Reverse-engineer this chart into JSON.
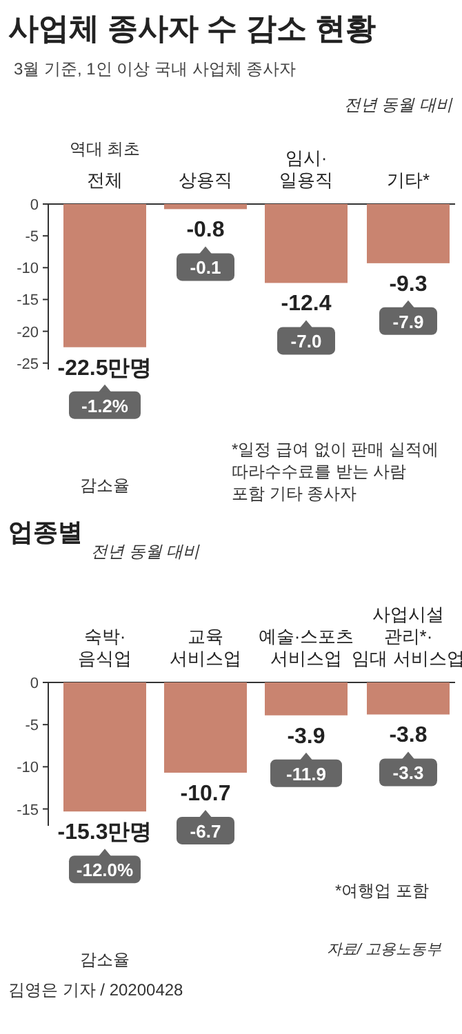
{
  "chart_data": [
    {
      "type": "bar",
      "title": "사업체 종사자 수 감소 현황",
      "subtitle": "3월 기준, 1인 이상 국내 사업체 종사자",
      "categories": [
        "전체",
        "상용직",
        "임시·\n일용직",
        "기타*"
      ],
      "values": [
        -22.5,
        -0.8,
        -12.4,
        -9.3
      ],
      "color": "#c98470",
      "value_labels": [
        "-22.5만명",
        "-0.8",
        "-12.4",
        "-9.3"
      ],
      "ylim": [
        -26,
        0
      ],
      "yticks": [
        0,
        -5,
        -10,
        -15,
        -20,
        -25
      ],
      "annotations": [
        "역대 최초",
        "전년 동월 대비",
        "감소율",
        "*일정 급여 없이 판매 실적에\n따라수수료를 받는 사람\n포함 기타 종사자",
        "-1.2%",
        "-0.1",
        "-7.0",
        "-7.9"
      ]
    },
    {
      "type": "bar",
      "title": "업종별",
      "categories": [
        "숙박·\n음식업",
        "교육\n서비스업",
        "예술·스포츠\n서비스업",
        "사업시설\n관리*·\n임대 서비스업"
      ],
      "values": [
        -15.3,
        -10.7,
        -3.9,
        -3.8
      ],
      "color": "#c98470",
      "value_labels": [
        "-15.3만명",
        "-10.7",
        "-3.9",
        "-3.8"
      ],
      "ylim": [
        -17,
        0
      ],
      "yticks": [
        0,
        -5,
        -10,
        -15
      ],
      "annotations": [
        "전년 동월 대비",
        "감소율",
        "*여행업 포함",
        "자료/ 고용노동부",
        "김영은 기자 / 20200428",
        "-12.0%",
        "-6.7",
        "-11.9",
        "-3.3"
      ]
    }
  ]
}
